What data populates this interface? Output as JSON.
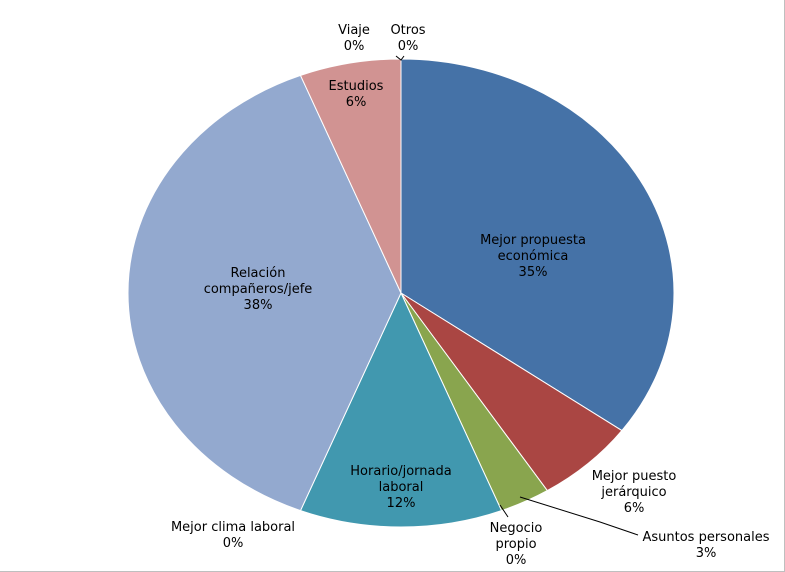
{
  "chart_data": {
    "type": "pie",
    "title": "",
    "start_angle_deg": 0,
    "direction": "clockwise",
    "slices": [
      {
        "name": "Mejor propuesta económica",
        "value": 35,
        "color": "#4572a7",
        "label_lines": [
          "Mejor propuesta",
          "económica",
          "35%"
        ]
      },
      {
        "name": "Mejor puesto jerárquico",
        "value": 6,
        "color": "#aa4643",
        "label_lines": [
          "Mejor puesto",
          "jerárquico",
          "6%"
        ]
      },
      {
        "name": "Asuntos personales",
        "value": 3,
        "color": "#89a54e",
        "label_lines": [
          "Asuntos personales",
          "3%"
        ]
      },
      {
        "name": "Negocio propio",
        "value": 0,
        "color": "#71588f",
        "label_lines": [
          "Negocio",
          "propio",
          "0%"
        ]
      },
      {
        "name": "Horario/jornada laboral",
        "value": 12,
        "color": "#4198af",
        "label_lines": [
          "Horario/jornada",
          "laboral",
          "12%"
        ]
      },
      {
        "name": "Mejor clima laboral",
        "value": 0,
        "color": "#db843d",
        "label_lines": [
          "Mejor clima laboral",
          "0%"
        ]
      },
      {
        "name": "Relación compañeros/jefe",
        "value": 38,
        "color": "#93a9cf",
        "label_lines": [
          "Relación",
          "compañeros/jefe",
          "38%"
        ]
      },
      {
        "name": "Estudios",
        "value": 6,
        "color": "#d19392",
        "label_lines": [
          "Estudios",
          "6%"
        ]
      },
      {
        "name": "Viaje",
        "value": 0,
        "color": "#b9cd96",
        "label_lines": [
          "Viaje",
          "0%"
        ]
      },
      {
        "name": "Otros",
        "value": 0,
        "color": "#a99bbd",
        "label_lines": [
          "Otros",
          "0%"
        ]
      }
    ]
  }
}
